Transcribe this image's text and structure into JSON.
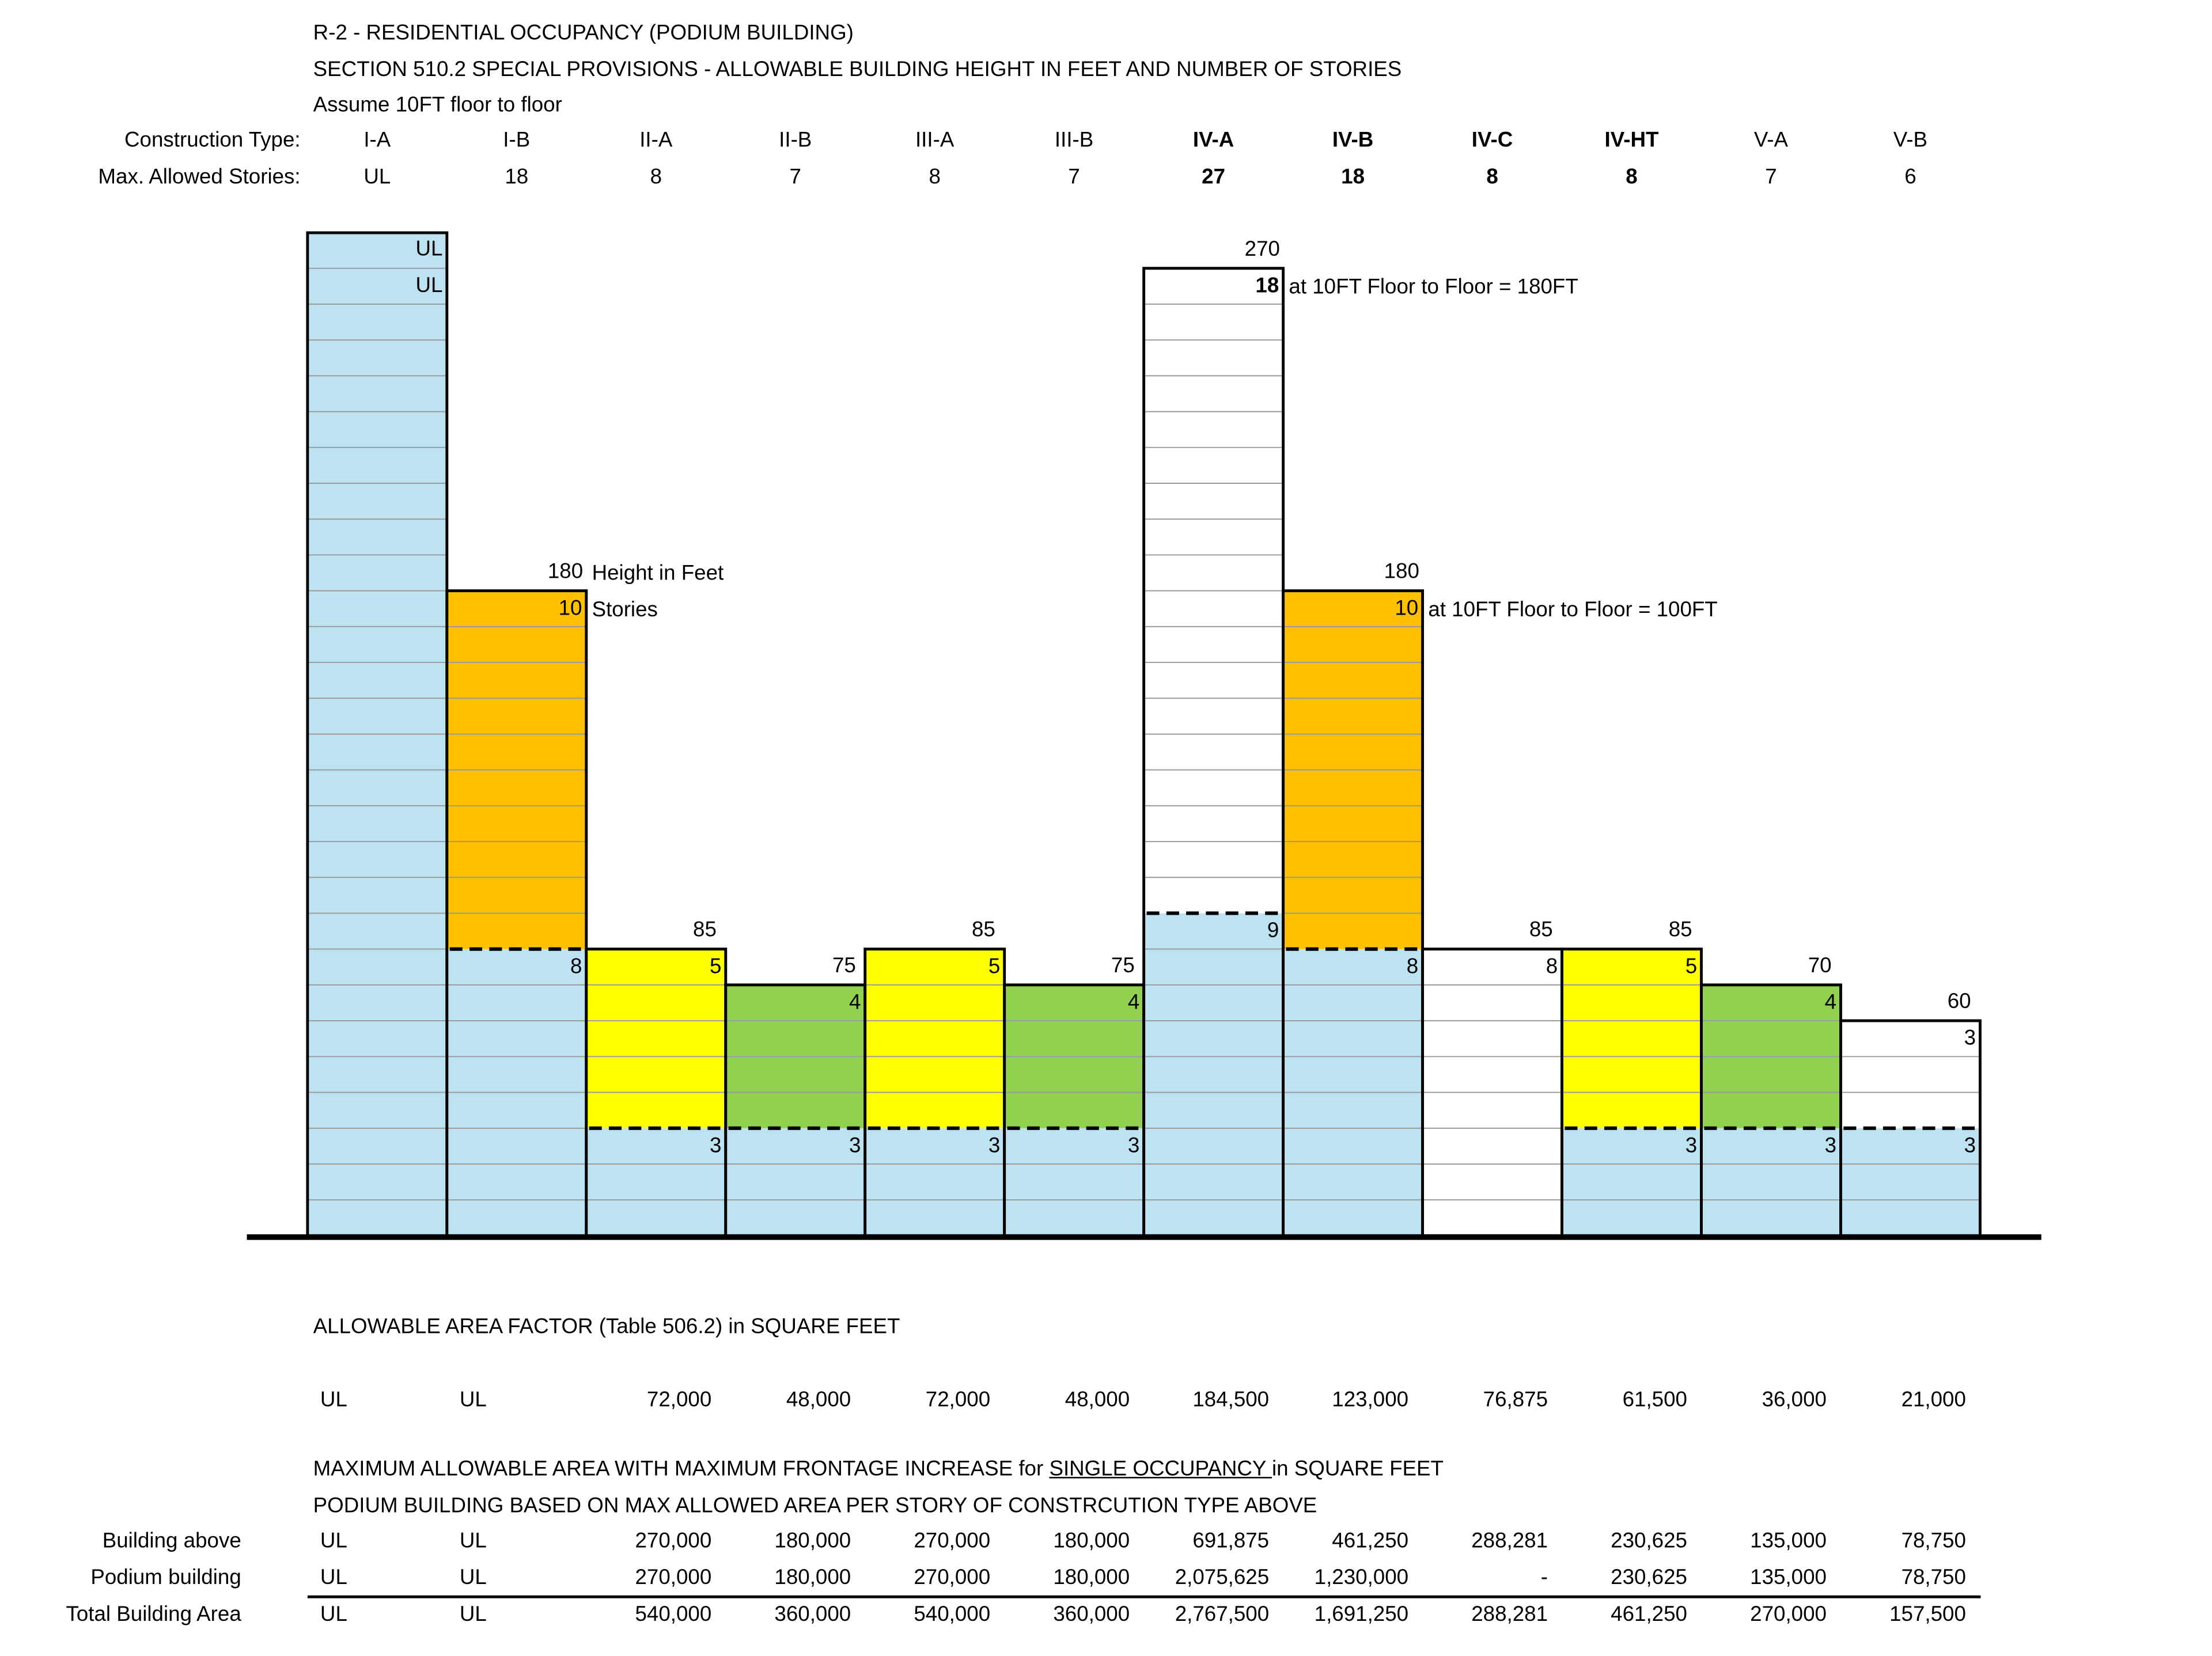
{
  "header": {
    "line1": "R-2 - RESIDENTIAL OCCUPANCY (PODIUM BUILDING)",
    "line2": "SECTION 510.2 SPECIAL PROVISIONS - ALLOWABLE BUILDING HEIGHT IN FEET AND NUMBER OF STORIES",
    "line3": "Assume 10FT floor to floor",
    "row_label_types": "Construction Type:",
    "row_label_stories": "Max. Allowed Stories:"
  },
  "columns": [
    {
      "type": "I-A",
      "stories": "UL",
      "bold": false
    },
    {
      "type": "I-B",
      "stories": "18",
      "bold": false
    },
    {
      "type": "II-A",
      "stories": "8",
      "bold": false
    },
    {
      "type": "II-B",
      "stories": "7",
      "bold": false
    },
    {
      "type": "III-A",
      "stories": "8",
      "bold": false
    },
    {
      "type": "III-B",
      "stories": "7",
      "bold": false
    },
    {
      "type": "IV-A",
      "stories": "27",
      "bold": true
    },
    {
      "type": "IV-B",
      "stories": "18",
      "bold": true
    },
    {
      "type": "IV-C",
      "stories": "8",
      "bold": true
    },
    {
      "type": "IV-HT",
      "stories": "8",
      "bold": true
    },
    {
      "type": "V-A",
      "stories": "7",
      "bold": false
    },
    {
      "type": "V-B",
      "stories": "6",
      "bold": false
    }
  ],
  "chart_data": {
    "type": "bar",
    "categories": [
      "I-A",
      "I-B",
      "II-A",
      "II-B",
      "III-A",
      "III-B",
      "IV-A",
      "IV-B",
      "IV-C",
      "IV-HT",
      "V-A",
      "V-B"
    ],
    "y_unit": "stories",
    "ylim": [
      0,
      28
    ],
    "colors": {
      "podium": "#bde3f3",
      "upper_ib": "#ffc000",
      "upper_yellow": "#ffff00",
      "upper_green": "#92d050",
      "white": "#ffffff",
      "line": "#000000"
    },
    "bars": [
      {
        "category": "I-A",
        "podium": 28,
        "upper": 0,
        "upper_color": "podium",
        "height_label": "UL",
        "stories_label": "UL",
        "podium_label": "",
        "dashed": false
      },
      {
        "category": "I-B",
        "podium": 8,
        "upper": 10,
        "upper_color": "upper_ib",
        "height_label": "180",
        "stories_label": "10",
        "podium_label": "8",
        "dashed": true
      },
      {
        "category": "II-A",
        "podium": 3,
        "upper": 5,
        "upper_color": "upper_yellow",
        "height_label": "85",
        "stories_label": "5",
        "podium_label": "3",
        "dashed": true
      },
      {
        "category": "II-B",
        "podium": 3,
        "upper": 4,
        "upper_color": "upper_green",
        "height_label": "75",
        "stories_label": "4",
        "podium_label": "3",
        "dashed": true
      },
      {
        "category": "III-A",
        "podium": 3,
        "upper": 5,
        "upper_color": "upper_yellow",
        "height_label": "85",
        "stories_label": "5",
        "podium_label": "3",
        "dashed": true
      },
      {
        "category": "III-B",
        "podium": 3,
        "upper": 4,
        "upper_color": "upper_green",
        "height_label": "75",
        "stories_label": "4",
        "podium_label": "3",
        "dashed": true
      },
      {
        "category": "IV-A",
        "podium": 9,
        "upper": 18,
        "upper_color": "white",
        "height_label": "270",
        "stories_label": "18",
        "podium_label": "9",
        "dashed": true
      },
      {
        "category": "IV-B",
        "podium": 8,
        "upper": 10,
        "upper_color": "upper_ib",
        "height_label": "180",
        "stories_label": "10",
        "podium_label": "8",
        "dashed": true
      },
      {
        "category": "IV-C",
        "podium": 8,
        "upper": 0,
        "upper_color": "white",
        "height_label": "85",
        "stories_label": "8",
        "podium_label": "",
        "dashed": false,
        "podium_color": "white"
      },
      {
        "category": "IV-HT",
        "podium": 3,
        "upper": 5,
        "upper_color": "upper_yellow",
        "height_label": "85",
        "stories_label": "5",
        "podium_label": "3",
        "dashed": true
      },
      {
        "category": "V-A",
        "podium": 3,
        "upper": 4,
        "upper_color": "upper_green",
        "height_label": "70",
        "stories_label": "4",
        "podium_label": "3",
        "dashed": true
      },
      {
        "category": "V-B",
        "podium": 3,
        "upper": 3,
        "upper_color": "white",
        "height_label": "60",
        "stories_label": "3",
        "podium_label": "3",
        "dashed": true
      }
    ],
    "annotations": {
      "height_in_feet": "Height in Feet",
      "stories": "Stories",
      "iva_note": "at 10FT Floor to Floor = 180FT",
      "ivb_note": "at 10FT Floor to Floor = 100FT"
    }
  },
  "area_factor": {
    "title": "ALLOWABLE AREA FACTOR (Table 506.2) in SQUARE FEET",
    "values": [
      "UL",
      "UL",
      "72,000",
      "48,000",
      "72,000",
      "48,000",
      "184,500",
      "123,000",
      "76,875",
      "61,500",
      "36,000",
      "21,000"
    ]
  },
  "max_area": {
    "title_prefix": "MAXIMUM ALLOWABLE AREA WITH MAXIMUM FRONTAGE INCREASE for ",
    "title_underlined": "SINGLE OCCUPANCY ",
    "title_suffix": "in SQUARE FEET",
    "subtitle": "PODIUM BUILDING BASED ON MAX ALLOWED AREA PER STORY OF CONSTRCUTION TYPE ABOVE",
    "rows": [
      {
        "label": "Building above",
        "values": [
          "UL",
          "UL",
          "270,000",
          "180,000",
          "270,000",
          "180,000",
          "691,875",
          "461,250",
          "288,281",
          "230,625",
          "135,000",
          "78,750"
        ]
      },
      {
        "label": "Podium building",
        "values": [
          "UL",
          "UL",
          "270,000",
          "180,000",
          "270,000",
          "180,000",
          "2,075,625",
          "1,230,000",
          "-",
          "230,625",
          "135,000",
          "78,750"
        ]
      },
      {
        "label": "Total Building Area",
        "values": [
          "UL",
          "UL",
          "540,000",
          "360,000",
          "540,000",
          "360,000",
          "2,767,500",
          "1,691,250",
          "288,281",
          "461,250",
          "270,000",
          "157,500"
        ]
      }
    ]
  }
}
